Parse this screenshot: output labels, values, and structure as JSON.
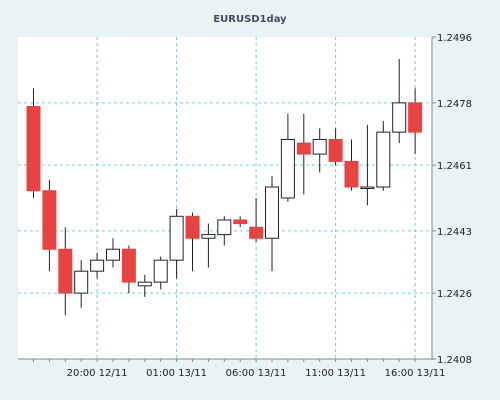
{
  "chart_data": {
    "type": "candlestick",
    "title": "EURUSD1day",
    "y_ticks": [
      "1.2408",
      "1.2426",
      "1.2443",
      "1.2461",
      "1.2478",
      "1.2496"
    ],
    "ylim": [
      1.2408,
      1.2496
    ],
    "x_ticks": [
      "20:00 12/11",
      "01:00 13/11",
      "06:00 13/11",
      "11:00 13/11",
      "16:00 13/11"
    ],
    "grid": true,
    "colors": {
      "up": "#ffffff",
      "down": "#e84343",
      "outline": "#222222",
      "grid": "#7fc9cc",
      "background": "#ffffff",
      "frame": "#e9f3f5"
    },
    "candles": [
      {
        "open": 1.2477,
        "high": 1.2482,
        "low": 1.2452,
        "close": 1.2454
      },
      {
        "open": 1.2454,
        "high": 1.2457,
        "low": 1.2432,
        "close": 1.2438
      },
      {
        "open": 1.2438,
        "high": 1.2444,
        "low": 1.242,
        "close": 1.2426
      },
      {
        "open": 1.2426,
        "high": 1.2435,
        "low": 1.2422,
        "close": 1.2432
      },
      {
        "open": 1.2432,
        "high": 1.2437,
        "low": 1.243,
        "close": 1.2435
      },
      {
        "open": 1.2435,
        "high": 1.2441,
        "low": 1.2433,
        "close": 1.2438
      },
      {
        "open": 1.2438,
        "high": 1.2439,
        "low": 1.2426,
        "close": 1.2429
      },
      {
        "open": 1.2428,
        "high": 1.2431,
        "low": 1.2425,
        "close": 1.2429
      },
      {
        "open": 1.2429,
        "high": 1.2436,
        "low": 1.2427,
        "close": 1.2435
      },
      {
        "open": 1.2435,
        "high": 1.2449,
        "low": 1.243,
        "close": 1.2447
      },
      {
        "open": 1.2447,
        "high": 1.2448,
        "low": 1.2432,
        "close": 1.2441
      },
      {
        "open": 1.2441,
        "high": 1.2445,
        "low": 1.2433,
        "close": 1.2442
      },
      {
        "open": 1.2442,
        "high": 1.2447,
        "low": 1.2439,
        "close": 1.2446
      },
      {
        "open": 1.2446,
        "high": 1.2447,
        "low": 1.2444,
        "close": 1.2445
      },
      {
        "open": 1.2444,
        "high": 1.2452,
        "low": 1.244,
        "close": 1.2441
      },
      {
        "open": 1.2441,
        "high": 1.2458,
        "low": 1.2432,
        "close": 1.2455
      },
      {
        "open": 1.2452,
        "high": 1.2475,
        "low": 1.2451,
        "close": 1.2468
      },
      {
        "open": 1.2467,
        "high": 1.2475,
        "low": 1.2453,
        "close": 1.2464
      },
      {
        "open": 1.2464,
        "high": 1.2471,
        "low": 1.2459,
        "close": 1.2468
      },
      {
        "open": 1.2468,
        "high": 1.2471,
        "low": 1.2461,
        "close": 1.2462
      },
      {
        "open": 1.2462,
        "high": 1.2468,
        "low": 1.2454,
        "close": 1.2455
      },
      {
        "open": 1.2455,
        "high": 1.2472,
        "low": 1.245,
        "close": 1.2455
      },
      {
        "open": 1.2455,
        "high": 1.2473,
        "low": 1.2454,
        "close": 1.247
      },
      {
        "open": 1.247,
        "high": 1.249,
        "low": 1.2467,
        "close": 1.2478
      },
      {
        "open": 1.2478,
        "high": 1.2482,
        "low": 1.2464,
        "close": 1.247
      }
    ]
  }
}
